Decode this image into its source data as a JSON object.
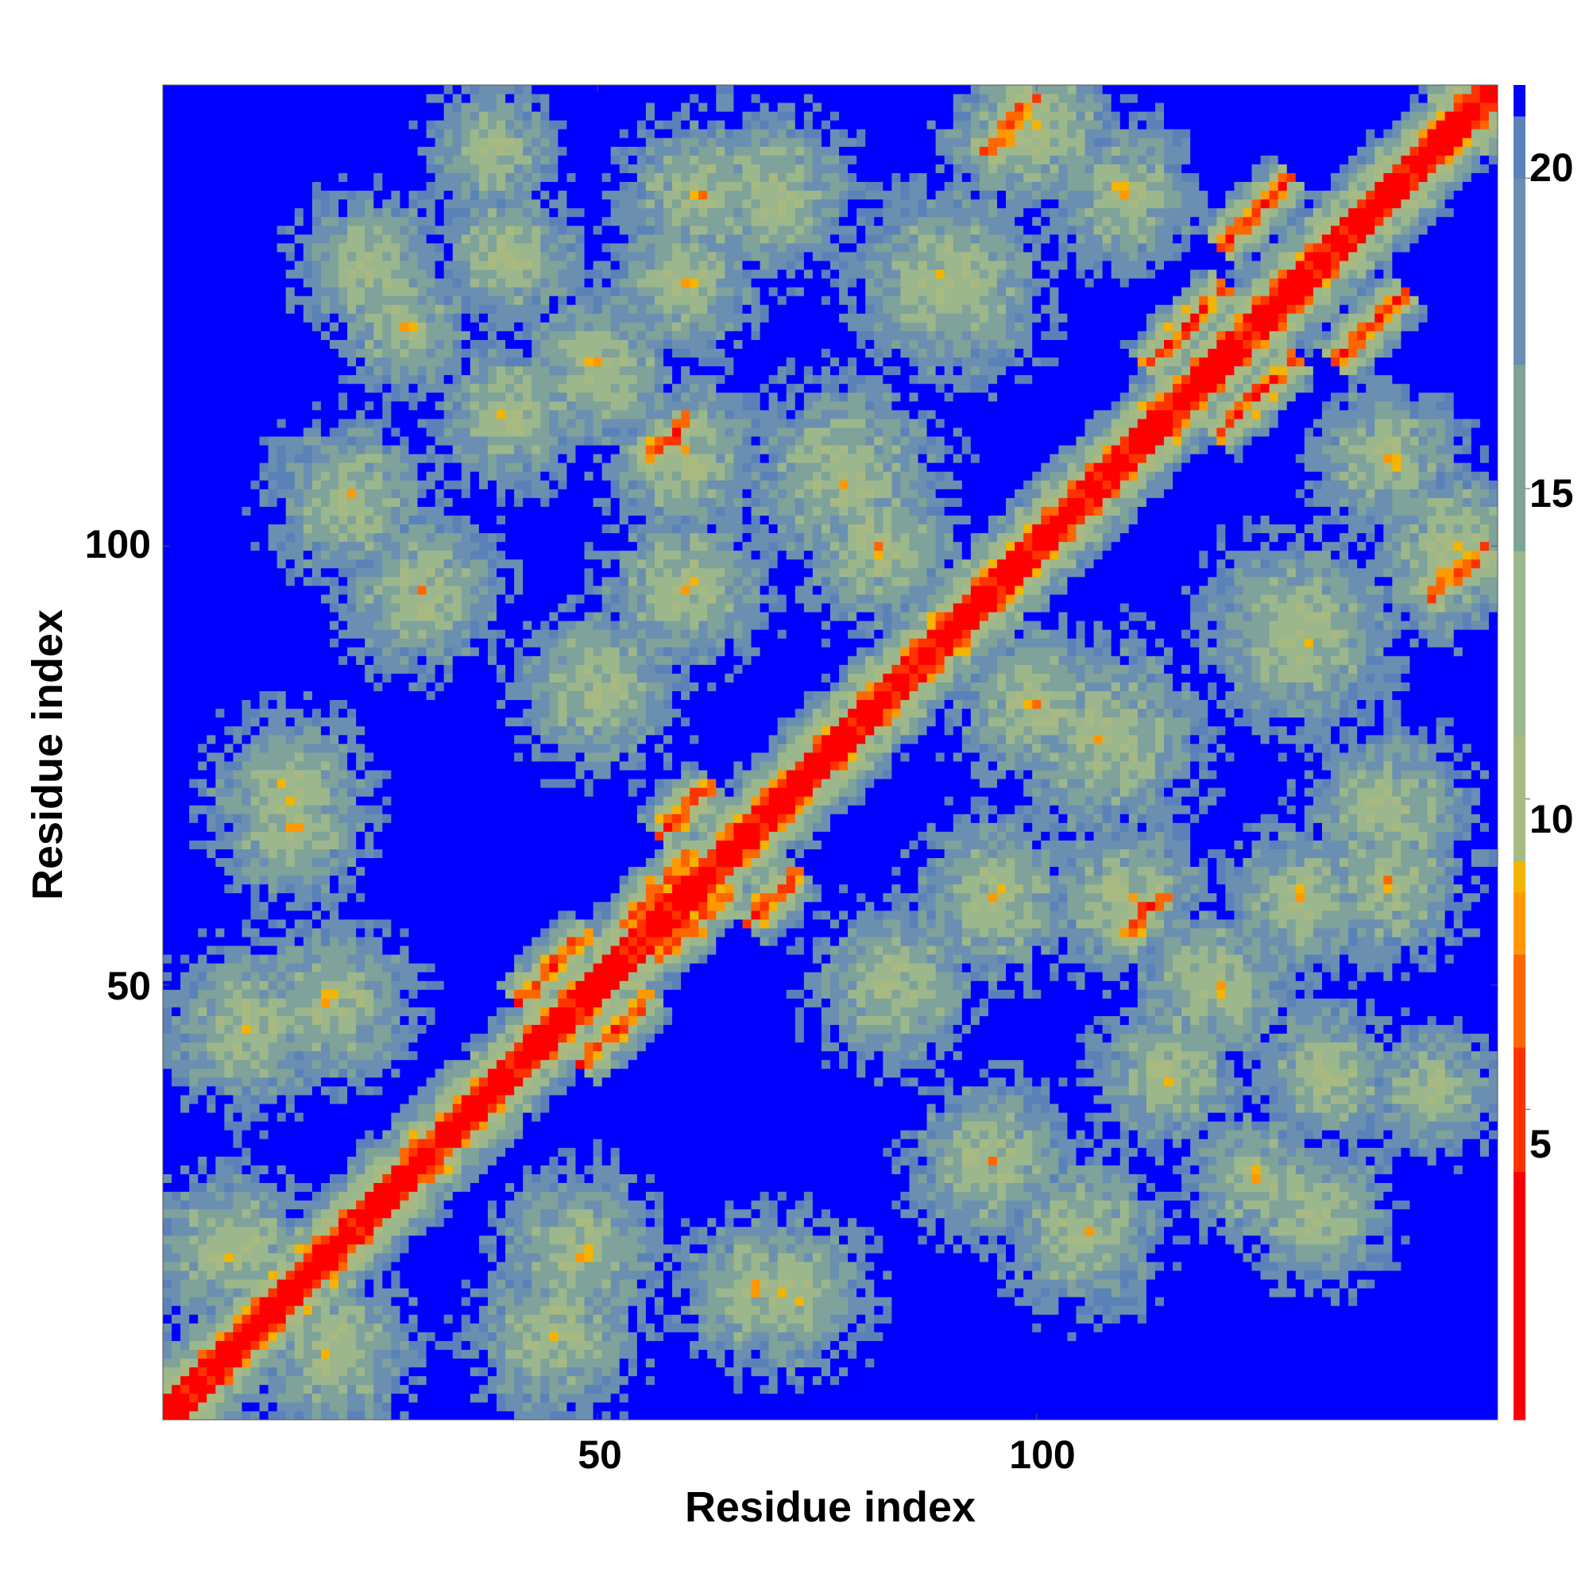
{
  "chart_data": {
    "type": "heatmap",
    "title": "",
    "xlabel": "Residue index",
    "ylabel": "Residue index",
    "xlim": [
      1,
      152
    ],
    "ylim": [
      1,
      152
    ],
    "xticks": [
      50,
      100
    ],
    "yticks": [
      50,
      100
    ],
    "x_tick_labels": [
      "50",
      "100"
    ],
    "y_tick_labels": [
      "50",
      "100"
    ],
    "colorbar": {
      "range": [
        0,
        21.5
      ],
      "ticks": [
        5,
        10,
        15,
        20
      ],
      "tick_labels": [
        "5",
        "10",
        "15",
        "20"
      ],
      "above_max_color": "#0000ff",
      "stops": [
        {
          "value": 0,
          "color": "#ff0000"
        },
        {
          "value": 4,
          "color": "#ff3300"
        },
        {
          "value": 6,
          "color": "#ff6600"
        },
        {
          "value": 7.5,
          "color": "#ff9900"
        },
        {
          "value": 8.5,
          "color": "#f5b400"
        },
        {
          "value": 9,
          "color": "#a8ba82"
        },
        {
          "value": 11,
          "color": "#9cb78c"
        },
        {
          "value": 14,
          "color": "#7fa29a"
        },
        {
          "value": 17,
          "color": "#6b8fb0"
        },
        {
          "value": 20,
          "color": "#5b82b8"
        },
        {
          "value": 21,
          "color": "#5577b8"
        }
      ]
    },
    "grid": false,
    "cell_size_residues": 1,
    "symmetric": true,
    "features": {
      "diagonal_band_halfwidth": 2,
      "contact_threshold": 21,
      "antiparallel_strands": [
        {
          "center": [
            45,
            52
          ],
          "length": 8
        },
        {
          "center": [
            57,
            61
          ],
          "length": 8
        },
        {
          "center": [
            36,
            38
          ],
          "length": 5
        },
        {
          "center": [
            60,
            70
          ],
          "length": 6
        },
        {
          "center": [
            117,
            125
          ],
          "length": 9
        },
        {
          "center": [
            97,
            148
          ],
          "length": 6
        },
        {
          "center": [
            125,
            138
          ],
          "length": 8
        },
        {
          "center": [
            58,
            112
          ],
          "length": 5
        }
      ],
      "blobs": [
        {
          "center": [
            30,
            95
          ],
          "size": 10
        },
        {
          "center": [
            40,
            133
          ],
          "size": 9
        },
        {
          "center": [
            70,
            140
          ],
          "size": 10
        },
        {
          "center": [
            82,
            100
          ],
          "size": 10
        },
        {
          "center": [
            90,
            130
          ],
          "size": 12
        },
        {
          "center": [
            100,
            148
          ],
          "size": 10
        },
        {
          "center": [
            108,
            78
          ],
          "size": 12
        },
        {
          "center": [
            140,
            62
          ],
          "size": 10
        },
        {
          "center": [
            146,
            97
          ],
          "size": 8
        },
        {
          "center": [
            20,
            8
          ],
          "size": 10
        },
        {
          "center": [
            10,
            45
          ],
          "size": 10
        },
        {
          "center": [
            48,
            20
          ],
          "size": 10
        },
        {
          "center": [
            72,
            15
          ],
          "size": 10
        },
        {
          "center": [
            105,
            22
          ],
          "size": 10
        },
        {
          "center": [
            132,
            24
          ],
          "size": 9
        },
        {
          "center": [
            145,
            38
          ],
          "size": 8
        },
        {
          "center": [
            120,
            50
          ],
          "size": 10
        },
        {
          "center": [
            110,
            60
          ],
          "size": 10
        },
        {
          "center": [
            84,
            50
          ],
          "size": 10
        },
        {
          "center": [
            95,
            60
          ],
          "size": 10
        },
        {
          "center": [
            15,
            68
          ],
          "size": 9
        },
        {
          "center": [
            40,
            115
          ],
          "size": 9
        },
        {
          "center": [
            140,
            110
          ],
          "size": 9
        },
        {
          "center": [
            60,
            130
          ],
          "size": 9
        },
        {
          "center": [
            28,
            125
          ],
          "size": 8
        }
      ]
    }
  }
}
